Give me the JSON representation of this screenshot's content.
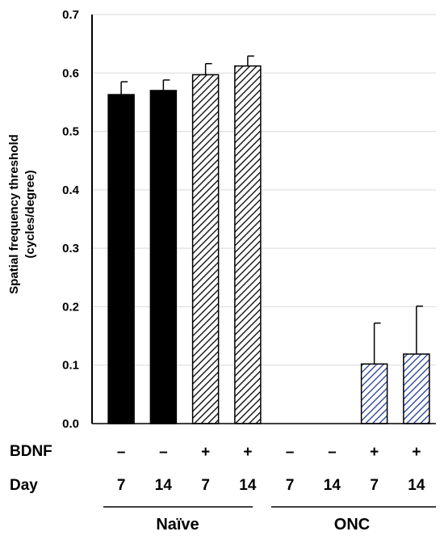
{
  "chart_data": {
    "type": "bar",
    "ylabel_line1": "Spatial frequency threshold",
    "ylabel_line2": "(cycles/degree)",
    "ylim": [
      0,
      0.7
    ],
    "yticks": [
      "0.0",
      "0.1",
      "0.2",
      "0.3",
      "0.4",
      "0.5",
      "0.6",
      "0.7"
    ],
    "grid": true,
    "legend": "none",
    "bars": [
      {
        "group": "Naïve",
        "bdnf": "–",
        "day": "7",
        "value": 0.563,
        "error": 0.022,
        "fill": "solid-black"
      },
      {
        "group": "Naïve",
        "bdnf": "–",
        "day": "14",
        "value": 0.57,
        "error": 0.018,
        "fill": "solid-black"
      },
      {
        "group": "Naïve",
        "bdnf": "+",
        "day": "7",
        "value": 0.597,
        "error": 0.019,
        "fill": "hatch-black"
      },
      {
        "group": "Naïve",
        "bdnf": "+",
        "day": "14",
        "value": 0.612,
        "error": 0.017,
        "fill": "hatch-black"
      },
      {
        "group": "ONC",
        "bdnf": "–",
        "day": "7",
        "value": 0.0,
        "error": 0.0,
        "fill": "solid-black"
      },
      {
        "group": "ONC",
        "bdnf": "–",
        "day": "14",
        "value": 0.0,
        "error": 0.0,
        "fill": "solid-black"
      },
      {
        "group": "ONC",
        "bdnf": "+",
        "day": "7",
        "value": 0.102,
        "error": 0.07,
        "fill": "hatch-blue"
      },
      {
        "group": "ONC",
        "bdnf": "+",
        "day": "14",
        "value": 0.119,
        "error": 0.082,
        "fill": "hatch-blue"
      }
    ],
    "row_labels": {
      "bdnf": "BDNF",
      "day": "Day"
    },
    "groups": [
      "Naïve",
      "ONC"
    ],
    "colors": {
      "black": "#000000",
      "hatch_blue": "#1f3a93",
      "grid": "#d9d9d9"
    }
  }
}
